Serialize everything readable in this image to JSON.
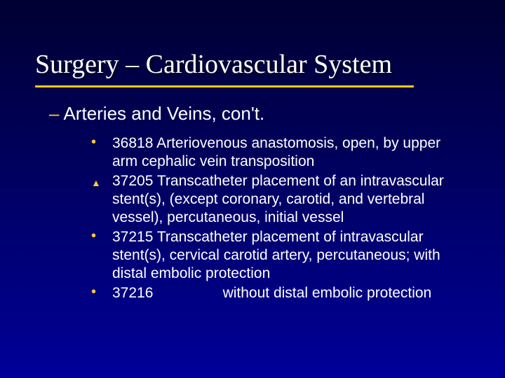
{
  "slide": {
    "title": "Surgery – Cardiovascular System",
    "subheading_dash": "–",
    "subheading_text": "Arteries and Veins, con't.",
    "underline_color": "#ffcc00",
    "bullet_color": "#ffcc33",
    "text_color": "#ffffff",
    "title_font": "Times New Roman",
    "body_font": "Arial",
    "title_fontsize": 38,
    "subheading_fontsize": 26,
    "body_fontsize": 21,
    "background_gradient": [
      "#000033",
      "#000055",
      "#000099"
    ],
    "items": [
      {
        "marker": "dot",
        "text": "36818  Arteriovenous anastomosis, open, by upper arm cephalic vein transposition"
      },
      {
        "marker": "triangle",
        "text": "37205  Transcatheter placement of an intravascular stent(s), (except coronary, carotid, and vertebral vessel), percutaneous, initial vessel"
      },
      {
        "marker": "dot",
        "text": "37215  Transcatheter placement of intravascular stent(s), cervical carotid artery, percutaneous; with distal embolic protection"
      },
      {
        "marker": "dot",
        "text": "37216                 without distal embolic protection"
      }
    ]
  }
}
